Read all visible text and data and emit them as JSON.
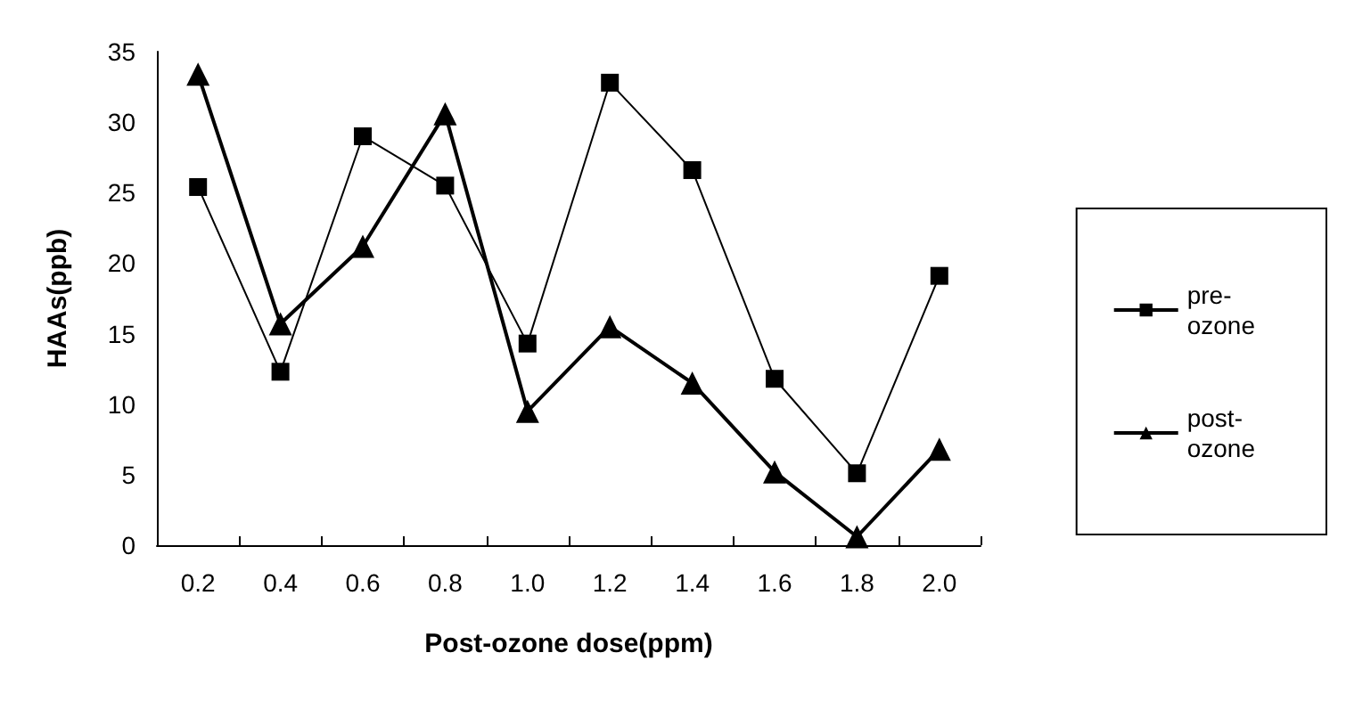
{
  "chart_data": {
    "type": "line",
    "xlabel": "Post-ozone dose(ppm)",
    "ylabel": "HAAs(ppb)",
    "categories": [
      "0.2",
      "0.4",
      "0.6",
      "0.8",
      "1.0",
      "1.2",
      "1.4",
      "1.6",
      "1.8",
      "2.0"
    ],
    "series": [
      {
        "name": "pre-ozone",
        "color": "#000000",
        "marker": "square",
        "values": [
          25.4,
          12.3,
          29,
          25.5,
          14.3,
          32.8,
          26.6,
          11.8,
          5.1,
          19.1
        ]
      },
      {
        "name": "post-ozone",
        "color": "#000000",
        "marker": "triangle",
        "values": [
          33.4,
          15.7,
          21.2,
          30.6,
          9.5,
          15.5,
          11.5,
          5.2,
          0.6,
          6.8
        ]
      }
    ],
    "ylim": [
      0,
      35
    ],
    "yticks": [
      0,
      5,
      10,
      15,
      20,
      25,
      30,
      35
    ],
    "grid": false,
    "legend": "right",
    "line_style": "solid"
  }
}
